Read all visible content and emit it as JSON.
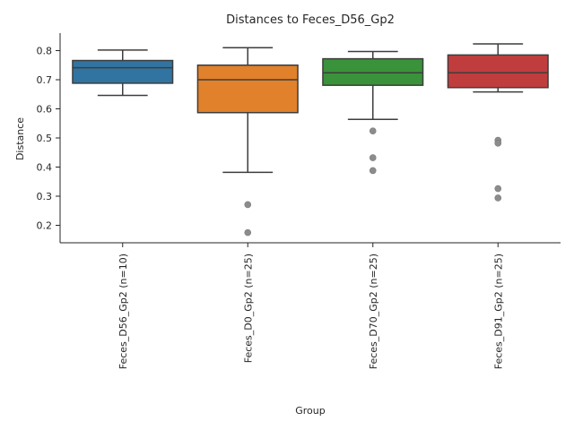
{
  "chart_data": {
    "type": "box",
    "title": "Distances to Feces_D56_Gp2",
    "xlabel": "Group",
    "ylabel": "Distance",
    "ylim": [
      0.14,
      0.86
    ],
    "yticks": [
      0.2,
      0.3,
      0.4,
      0.5,
      0.6,
      0.7,
      0.8
    ],
    "grid": false,
    "legend": "none",
    "categories": [
      "Feces_D56_Gp2 (n=10)",
      "Feces_D0_Gp2 (n=25)",
      "Feces_D70_Gp2 (n=25)",
      "Feces_D91_Gp2 (n=25)"
    ],
    "colors": [
      "#3274a1",
      "#e1812c",
      "#3a923a",
      "#c03d3e"
    ],
    "boxes": [
      {
        "whisker_low": 0.646,
        "q1": 0.688,
        "median": 0.741,
        "q3": 0.766,
        "whisker_high": 0.802,
        "outliers": []
      },
      {
        "whisker_low": 0.382,
        "q1": 0.587,
        "median": 0.7,
        "q3": 0.75,
        "whisker_high": 0.81,
        "outliers": [
          0.271,
          0.175
        ]
      },
      {
        "whisker_low": 0.564,
        "q1": 0.681,
        "median": 0.724,
        "q3": 0.772,
        "whisker_high": 0.797,
        "outliers": [
          0.524,
          0.432,
          0.388
        ]
      },
      {
        "whisker_low": 0.658,
        "q1": 0.673,
        "median": 0.724,
        "q3": 0.785,
        "whisker_high": 0.823,
        "outliers": [
          0.492,
          0.482,
          0.326,
          0.294
        ]
      }
    ]
  }
}
